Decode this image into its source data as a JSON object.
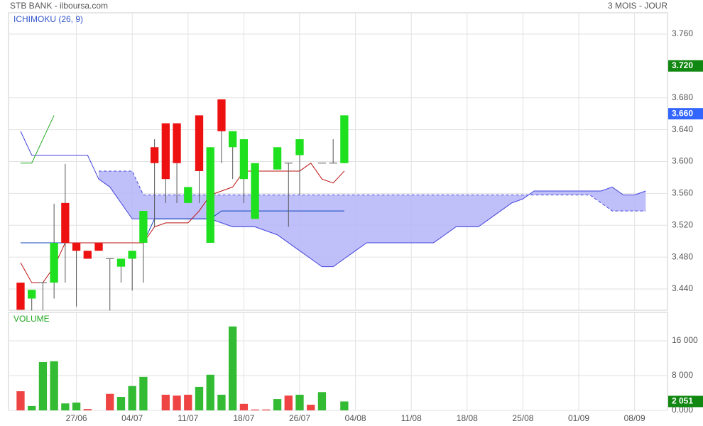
{
  "header": {
    "title": "STB BANK - ilboursa.com",
    "period": "3 MOIS - JOUR"
  },
  "chart_data": [
    {
      "type": "candlestick",
      "title": "ICHIMOKU (26, 9)",
      "title_color": "#3355cc",
      "xlim": [
        -1.08,
        57.95
      ],
      "ylim": [
        3.4133,
        3.7867
      ],
      "yticks": [
        {
          "value": 3.44,
          "label": "3.440"
        },
        {
          "value": 3.48,
          "label": "3.480"
        },
        {
          "value": 3.52,
          "label": "3.520"
        },
        {
          "value": 3.56,
          "label": "3.560"
        },
        {
          "value": 3.6,
          "label": "3.600"
        },
        {
          "value": 3.64,
          "label": "3.640"
        },
        {
          "value": 3.68,
          "label": "3.680"
        },
        {
          "value": 3.76,
          "label": "3.760"
        }
      ],
      "up_color": "#1ee01e",
      "down_color": "#ee1111",
      "flat_color": "#555555",
      "open": [
        3.448,
        3.428,
        3.448,
        3.448,
        3.548,
        3.498,
        3.488,
        3.498,
        3.478,
        3.468,
        3.478,
        3.498,
        3.618,
        3.648,
        3.648,
        3.548,
        3.658,
        3.498,
        3.678,
        3.618,
        3.578,
        3.528,
        null,
        3.59,
        3.598,
        3.608,
        null,
        3.598,
        3.598,
        3.598
      ],
      "high": [
        3.448,
        3.439,
        3.448,
        3.547,
        3.597,
        3.498,
        3.488,
        3.498,
        3.478,
        3.478,
        3.488,
        3.538,
        3.628,
        3.648,
        3.648,
        3.568,
        3.658,
        3.618,
        3.678,
        3.638,
        3.628,
        3.598,
        null,
        3.618,
        3.598,
        3.628,
        null,
        3.598,
        3.628,
        3.658
      ],
      "low": [
        3.414,
        3.413,
        3.413,
        3.428,
        3.448,
        3.418,
        3.478,
        3.488,
        3.413,
        3.448,
        3.438,
        3.448,
        3.518,
        3.548,
        3.548,
        3.548,
        3.548,
        3.498,
        3.598,
        3.578,
        3.548,
        3.528,
        null,
        3.59,
        3.518,
        3.558,
        null,
        3.598,
        3.598,
        3.598
      ],
      "close": [
        3.414,
        3.439,
        3.448,
        3.498,
        3.498,
        3.488,
        3.478,
        3.488,
        3.478,
        3.478,
        3.488,
        3.538,
        3.598,
        3.578,
        3.598,
        3.568,
        3.588,
        3.618,
        3.638,
        3.638,
        3.628,
        3.598,
        null,
        3.618,
        3.598,
        3.628,
        null,
        3.598,
        3.598,
        3.658
      ],
      "cloud_color": "#b4b4f8",
      "lines": [
        {
          "color": "#4444dd",
          "width": 1,
          "values": [
            3.638,
            3.608,
            3.608,
            3.608,
            3.608,
            3.608,
            3.608,
            3.578,
            3.568,
            3.548,
            3.528,
            3.528,
            3.528,
            3.528,
            3.528,
            3.528,
            3.528,
            3.528,
            3.523,
            3.518,
            3.518,
            3.518,
            3.513,
            3.508,
            3.498,
            3.488,
            3.478,
            3.468,
            3.468,
            3.478,
            3.488,
            3.498,
            3.498,
            3.498,
            3.498,
            3.498,
            3.498,
            3.498,
            3.508,
            3.518,
            3.518,
            3.518,
            3.528,
            3.538,
            3.548,
            3.553,
            3.563,
            3.563,
            3.563,
            3.563,
            3.563,
            3.563,
            3.563,
            3.568,
            3.558,
            3.558,
            3.563
          ]
        },
        {
          "color": "#4444dd",
          "width": 1,
          "dash": true,
          "values": [
            null,
            null,
            null,
            null,
            null,
            null,
            null,
            3.588,
            3.588,
            3.588,
            3.588,
            3.558,
            3.558,
            3.558,
            3.558,
            3.558,
            3.558,
            3.558,
            3.558,
            3.558,
            3.558,
            3.558,
            3.558,
            3.558,
            3.558,
            3.558,
            3.558,
            3.558,
            3.558,
            3.558,
            3.558,
            3.558,
            3.558,
            3.558,
            3.558,
            3.558,
            3.558,
            3.558,
            3.558,
            3.558,
            3.558,
            3.558,
            3.558,
            3.558,
            3.558,
            3.558,
            3.558,
            3.558,
            3.558,
            3.558,
            3.558,
            3.558,
            3.548,
            3.538,
            3.538,
            3.538,
            3.538
          ]
        },
        {
          "color": "#1144bb",
          "width": 1,
          "values": [
            3.498,
            3.498,
            3.498,
            3.498,
            3.498,
            3.498,
            3.498,
            3.498,
            3.498,
            3.498,
            3.498,
            3.498,
            3.528,
            3.528,
            3.528,
            3.528,
            3.528,
            3.528,
            3.538,
            3.538,
            3.538,
            3.538,
            3.538,
            3.538,
            3.538,
            3.538,
            3.538,
            3.538,
            3.538,
            3.538
          ]
        },
        {
          "color": "#bb1111",
          "width": 1,
          "values": [
            3.473,
            3.448,
            3.448,
            3.468,
            3.498,
            3.498,
            3.498,
            3.498,
            3.498,
            3.498,
            3.498,
            3.498,
            3.518,
            3.523,
            3.523,
            3.523,
            3.538,
            3.558,
            3.563,
            3.568,
            3.588,
            3.588,
            3.588,
            3.588,
            3.588,
            3.588,
            3.598,
            3.578,
            3.573,
            3.588
          ]
        },
        {
          "color": "#22aa22",
          "width": 1,
          "values": [
            3.598,
            3.598,
            3.628,
            3.658
          ]
        }
      ],
      "badges": [
        {
          "value": 3.72,
          "label": "3.720",
          "color": "#118811"
        },
        {
          "value": 3.66,
          "label": "3.660",
          "color": "#3366ff"
        }
      ]
    },
    {
      "type": "bar",
      "title": "VOLUME",
      "title_color": "#22aa22",
      "xlim": [
        -1.08,
        57.95
      ],
      "ylim": [
        0,
        22530
      ],
      "yticks": [
        {
          "value": 0,
          "label": "0.000"
        },
        {
          "value": 8000,
          "label": "8 000"
        },
        {
          "value": 16000,
          "label": "16 000"
        }
      ],
      "xticks": [
        {
          "value": 5,
          "label": "27/06"
        },
        {
          "value": 10,
          "label": "04/07"
        },
        {
          "value": 15,
          "label": "11/07"
        },
        {
          "value": 20,
          "label": "18/07"
        },
        {
          "value": 25,
          "label": "26/07"
        },
        {
          "value": 30,
          "label": "04/08"
        },
        {
          "value": 35,
          "label": "11/08"
        },
        {
          "value": 40,
          "label": "18/08"
        },
        {
          "value": 45,
          "label": "25/08"
        },
        {
          "value": 50,
          "label": "01/09"
        },
        {
          "value": 55,
          "label": "08/09"
        }
      ],
      "values": [
        4400,
        1000,
        11100,
        11300,
        1600,
        1800,
        300,
        0,
        3800,
        3100,
        5600,
        7700,
        0,
        3600,
        3400,
        3600,
        5400,
        8200,
        3600,
        19300,
        1500,
        200,
        200,
        2600,
        3400,
        3600,
        1300,
        4200,
        0,
        2051
      ],
      "colors": [
        "#ee4444",
        "#33bb33",
        "#33bb33",
        "#33bb33",
        "#33bb33",
        "#33bb33",
        "#ee4444",
        "#ee4444",
        "#ee4444",
        "#33bb33",
        "#33bb33",
        "#33bb33",
        "#33bb33",
        "#ee4444",
        "#ee4444",
        "#ee4444",
        "#33bb33",
        "#33bb33",
        "#33bb33",
        "#33bb33",
        "#ee4444",
        "#ee4444",
        "#ee4444",
        "#33bb33",
        "#ee4444",
        "#33bb33",
        "#ee4444",
        "#33bb33",
        "#33bb33",
        "#33bb33"
      ],
      "badges": [
        {
          "value": 2051,
          "label": "2 051",
          "color": "#118811"
        }
      ]
    }
  ]
}
